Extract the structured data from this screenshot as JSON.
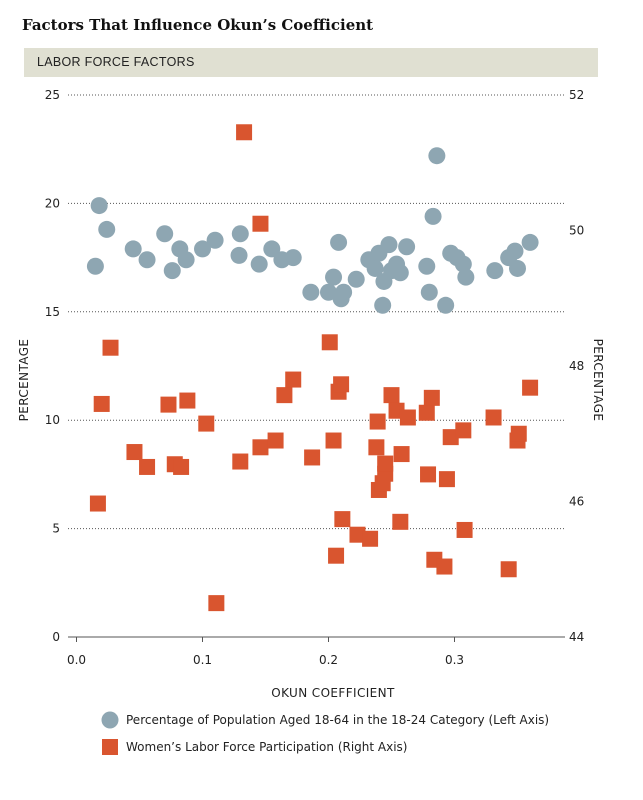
{
  "chart_data": {
    "type": "scatter",
    "title": "Factors That Influence Okun’s Coefficient",
    "subtitle": "LABOR FORCE FACTORS",
    "xlabel": "OKUN COEFFICIENT",
    "ylabel_left": "PERCENTAGE",
    "ylabel_right": "PERCENTAGE",
    "xlim": [
      0.0,
      0.4
    ],
    "ylim_left": [
      0,
      25
    ],
    "ylim_right": [
      44,
      52
    ],
    "x_ticks": [
      "0.0",
      "0.1",
      "0.2",
      "0.3"
    ],
    "x_tick_values": [
      0.0,
      0.1,
      0.2,
      0.3
    ],
    "y_left_ticks": [
      "0",
      "5",
      "10",
      "15",
      "20",
      "25"
    ],
    "y_left_tick_values": [
      0,
      5,
      10,
      15,
      20,
      25
    ],
    "y_right_ticks": [
      "44",
      "46",
      "48",
      "50",
      "52"
    ],
    "y_right_tick_values": [
      44,
      46,
      48,
      50,
      52
    ],
    "grid": true,
    "legend_position": "bottom",
    "series": [
      {
        "name": "Percentage of Population Aged 18-64 in the 18-24 Category (Left Axis)",
        "axis": "left",
        "marker": "circle",
        "color": "#8ea6b2",
        "points": [
          [
            0.015,
            17.1
          ],
          [
            0.018,
            19.9
          ],
          [
            0.024,
            18.8
          ],
          [
            0.045,
            17.9
          ],
          [
            0.056,
            17.4
          ],
          [
            0.07,
            18.6
          ],
          [
            0.076,
            16.9
          ],
          [
            0.082,
            17.9
          ],
          [
            0.087,
            17.4
          ],
          [
            0.1,
            17.9
          ],
          [
            0.11,
            18.3
          ],
          [
            0.129,
            17.6
          ],
          [
            0.13,
            18.6
          ],
          [
            0.145,
            17.2
          ],
          [
            0.155,
            17.9
          ],
          [
            0.163,
            17.4
          ],
          [
            0.172,
            17.5
          ],
          [
            0.186,
            15.9
          ],
          [
            0.2,
            15.9
          ],
          [
            0.204,
            16.6
          ],
          [
            0.208,
            18.2
          ],
          [
            0.21,
            15.6
          ],
          [
            0.212,
            15.9
          ],
          [
            0.222,
            16.5
          ],
          [
            0.232,
            17.4
          ],
          [
            0.237,
            17.0
          ],
          [
            0.24,
            17.7
          ],
          [
            0.243,
            15.3
          ],
          [
            0.244,
            16.4
          ],
          [
            0.248,
            18.1
          ],
          [
            0.25,
            16.9
          ],
          [
            0.254,
            17.2
          ],
          [
            0.257,
            16.8
          ],
          [
            0.262,
            18.0
          ],
          [
            0.278,
            17.1
          ],
          [
            0.28,
            15.9
          ],
          [
            0.283,
            19.4
          ],
          [
            0.286,
            22.2
          ],
          [
            0.293,
            15.3
          ],
          [
            0.297,
            17.7
          ],
          [
            0.302,
            17.5
          ],
          [
            0.307,
            17.2
          ],
          [
            0.309,
            16.6
          ],
          [
            0.332,
            16.9
          ],
          [
            0.343,
            17.5
          ],
          [
            0.348,
            17.8
          ],
          [
            0.35,
            17.0
          ],
          [
            0.36,
            18.2
          ]
        ]
      },
      {
        "name": "Women’s Labor Force Participation (Right Axis)",
        "axis": "right",
        "marker": "square",
        "color": "#d9552f",
        "points": [
          [
            0.017,
            45.97
          ],
          [
            0.02,
            47.44
          ],
          [
            0.027,
            48.27
          ],
          [
            0.046,
            46.73
          ],
          [
            0.056,
            46.51
          ],
          [
            0.073,
            47.43
          ],
          [
            0.078,
            46.55
          ],
          [
            0.083,
            46.51
          ],
          [
            0.088,
            47.49
          ],
          [
            0.103,
            47.15
          ],
          [
            0.111,
            44.5
          ],
          [
            0.13,
            46.59
          ],
          [
            0.133,
            51.45
          ],
          [
            0.146,
            46.8
          ],
          [
            0.146,
            50.1
          ],
          [
            0.158,
            46.9
          ],
          [
            0.165,
            47.57
          ],
          [
            0.172,
            47.8
          ],
          [
            0.187,
            46.65
          ],
          [
            0.201,
            48.35
          ],
          [
            0.204,
            46.9
          ],
          [
            0.206,
            45.2
          ],
          [
            0.208,
            47.62
          ],
          [
            0.21,
            47.73
          ],
          [
            0.211,
            45.74
          ],
          [
            0.223,
            45.51
          ],
          [
            0.233,
            45.45
          ],
          [
            0.238,
            46.8
          ],
          [
            0.239,
            47.18
          ],
          [
            0.24,
            46.17
          ],
          [
            0.243,
            46.27
          ],
          [
            0.245,
            46.41
          ],
          [
            0.245,
            46.56
          ],
          [
            0.25,
            47.57
          ],
          [
            0.254,
            47.34
          ],
          [
            0.257,
            45.7
          ],
          [
            0.258,
            46.7
          ],
          [
            0.263,
            47.24
          ],
          [
            0.278,
            47.31
          ],
          [
            0.279,
            46.4
          ],
          [
            0.282,
            47.53
          ],
          [
            0.284,
            45.14
          ],
          [
            0.292,
            45.04
          ],
          [
            0.294,
            46.33
          ],
          [
            0.297,
            46.95
          ],
          [
            0.307,
            47.05
          ],
          [
            0.308,
            45.58
          ],
          [
            0.331,
            47.24
          ],
          [
            0.343,
            45.0
          ],
          [
            0.35,
            46.9
          ],
          [
            0.351,
            47.0
          ],
          [
            0.36,
            47.68
          ]
        ]
      }
    ]
  }
}
